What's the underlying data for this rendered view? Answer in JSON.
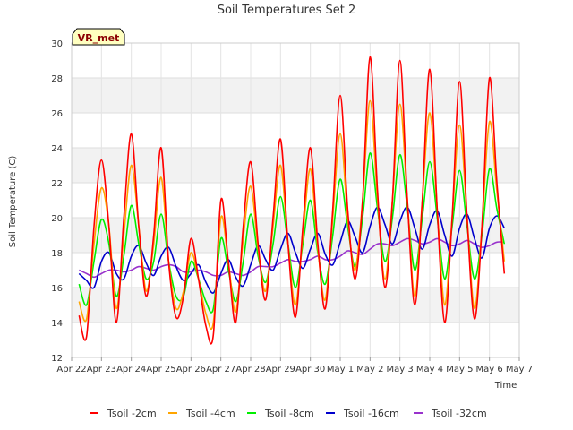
{
  "chart_data": {
    "type": "line",
    "title": "Soil Temperatures Set 2",
    "xlabel": "Time",
    "ylabel": "Soil Temperature (C)",
    "ylim": [
      12,
      30
    ],
    "yticks": [
      12,
      14,
      16,
      18,
      20,
      22,
      24,
      26,
      28,
      30
    ],
    "xlim": [
      0,
      15
    ],
    "xtick_labels": [
      "Apr 22",
      "Apr 23",
      "Apr 24",
      "Apr 25",
      "Apr 26",
      "Apr 27",
      "Apr 28",
      "Apr 29",
      "Apr 30",
      "May 1",
      "May 2",
      "May 3",
      "May 4",
      "May 5",
      "May 6",
      "May 7"
    ],
    "grid": true,
    "legend_position": "bottom",
    "badge": "VR_met",
    "x": [
      0.25,
      0.5,
      0.75,
      1.0,
      1.25,
      1.5,
      1.75,
      2.0,
      2.25,
      2.5,
      2.75,
      3.0,
      3.25,
      3.5,
      3.75,
      4.0,
      4.25,
      4.5,
      4.75,
      5.0,
      5.25,
      5.5,
      5.75,
      6.0,
      6.25,
      6.5,
      6.75,
      7.0,
      7.25,
      7.5,
      7.75,
      8.0,
      8.25,
      8.5,
      8.75,
      9.0,
      9.25,
      9.5,
      9.75,
      10.0,
      10.25,
      10.5,
      10.75,
      11.0,
      11.25,
      11.5,
      11.75,
      12.0,
      12.25,
      12.5,
      12.75,
      13.0,
      13.25,
      13.5,
      13.75,
      14.0,
      14.25,
      14.5
    ],
    "series": [
      {
        "name": "Tsoil -2cm",
        "color": "#ff0000",
        "values": [
          14.4,
          13.2,
          19.5,
          23.3,
          19.5,
          14.0,
          20.0,
          24.8,
          19.5,
          15.5,
          19.0,
          24.0,
          17.5,
          14.3,
          15.5,
          18.8,
          16.5,
          13.8,
          13.3,
          21.0,
          17.5,
          14.0,
          19.5,
          23.2,
          18.5,
          15.3,
          20.0,
          24.5,
          18.5,
          14.3,
          19.5,
          24.0,
          18.5,
          14.8,
          20.5,
          27.0,
          20.5,
          16.5,
          21.0,
          29.2,
          21.5,
          16.0,
          21.0,
          29.0,
          21.0,
          15.0,
          21.0,
          28.5,
          20.5,
          14.0,
          20.0,
          27.8,
          20.0,
          14.2,
          19.5,
          28.0,
          22.0,
          16.8
        ]
      },
      {
        "name": "Tsoil -4cm",
        "color": "#ffa500",
        "values": [
          15.2,
          14.2,
          18.5,
          21.7,
          19.5,
          14.8,
          19.0,
          23.0,
          19.5,
          15.8,
          18.5,
          22.3,
          17.5,
          14.8,
          15.8,
          18.0,
          16.5,
          14.5,
          14.0,
          20.0,
          17.5,
          14.6,
          18.8,
          21.8,
          18.2,
          15.8,
          19.5,
          23.0,
          18.5,
          15.0,
          19.0,
          22.8,
          18.2,
          15.3,
          20.0,
          24.8,
          20.0,
          17.0,
          21.0,
          26.7,
          21.0,
          16.5,
          21.0,
          26.5,
          21.0,
          15.5,
          21.0,
          26.0,
          20.5,
          15.0,
          20.0,
          25.3,
          20.0,
          14.8,
          19.5,
          25.5,
          21.5,
          17.5
        ]
      },
      {
        "name": "Tsoil -8cm",
        "color": "#00ee00",
        "values": [
          16.2,
          15.0,
          17.5,
          19.9,
          18.5,
          15.5,
          17.8,
          20.7,
          18.5,
          16.5,
          17.5,
          20.2,
          17.5,
          15.5,
          15.5,
          17.5,
          16.5,
          15.2,
          14.8,
          18.8,
          17.0,
          15.2,
          17.5,
          20.2,
          17.8,
          16.3,
          18.5,
          21.2,
          18.5,
          16.0,
          18.5,
          21.0,
          18.0,
          16.2,
          19.0,
          22.2,
          19.5,
          17.2,
          20.0,
          23.7,
          20.5,
          17.5,
          20.0,
          23.6,
          20.5,
          17.0,
          20.0,
          23.2,
          20.0,
          16.5,
          19.5,
          22.7,
          19.5,
          16.5,
          19.0,
          22.8,
          20.5,
          18.5
        ]
      },
      {
        "name": "Tsoil -16cm",
        "color": "#0000cc",
        "values": [
          16.8,
          16.4,
          16.0,
          17.5,
          18.0,
          16.8,
          16.5,
          17.8,
          18.4,
          17.4,
          16.7,
          17.8,
          18.3,
          17.2,
          16.4,
          16.8,
          17.3,
          16.3,
          15.7,
          16.8,
          17.6,
          16.6,
          16.1,
          17.3,
          18.4,
          17.6,
          17.0,
          18.2,
          19.1,
          18.0,
          17.1,
          18.2,
          19.1,
          17.9,
          17.3,
          18.6,
          19.8,
          18.9,
          18.0,
          19.5,
          20.6,
          19.6,
          18.5,
          19.8,
          20.6,
          19.4,
          18.2,
          19.6,
          20.4,
          19.0,
          17.8,
          19.4,
          20.2,
          18.8,
          17.7,
          19.4,
          20.1,
          19.4
        ]
      },
      {
        "name": "Tsoil -32cm",
        "color": "#9932cc",
        "values": [
          17.0,
          16.8,
          16.6,
          16.8,
          17.0,
          17.0,
          16.9,
          17.0,
          17.2,
          17.1,
          17.0,
          17.2,
          17.3,
          17.2,
          16.9,
          16.9,
          17.0,
          16.9,
          16.7,
          16.7,
          16.9,
          16.8,
          16.7,
          16.9,
          17.2,
          17.2,
          17.2,
          17.4,
          17.6,
          17.5,
          17.5,
          17.6,
          17.8,
          17.6,
          17.6,
          17.8,
          18.1,
          18.0,
          17.9,
          18.2,
          18.5,
          18.5,
          18.4,
          18.6,
          18.8,
          18.7,
          18.5,
          18.6,
          18.8,
          18.6,
          18.4,
          18.5,
          18.7,
          18.5,
          18.3,
          18.4,
          18.6,
          18.6
        ]
      }
    ]
  }
}
